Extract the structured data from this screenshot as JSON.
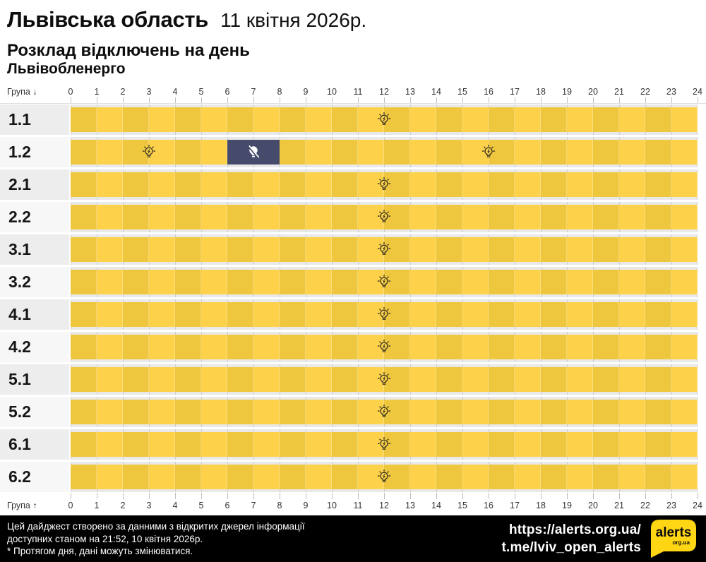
{
  "header": {
    "title": "Львівська область",
    "date": "11 квітня 2026р.",
    "subtitle": "Розклад відключень на день",
    "provider": "Львівобленерго"
  },
  "chart_data": {
    "type": "heatmap",
    "title": "Розклад відключень на день — Львівобленерго, 11 квітня 2026р.",
    "x_axis": {
      "label_top": "Група ↓",
      "label_bottom": "Група ↑",
      "unit": "година доби",
      "min": 0,
      "max": 24,
      "ticks": [
        0,
        1,
        2,
        3,
        4,
        5,
        6,
        7,
        8,
        9,
        10,
        11,
        12,
        13,
        14,
        15,
        16,
        17,
        18,
        19,
        20,
        21,
        22,
        23,
        24
      ]
    },
    "rows": [
      {
        "label": "1.1",
        "segments": [
          {
            "start": 0,
            "end": 24,
            "state": "power_on"
          }
        ]
      },
      {
        "label": "1.2",
        "segments": [
          {
            "start": 0,
            "end": 6,
            "state": "power_on"
          },
          {
            "start": 6,
            "end": 8,
            "state": "power_off"
          },
          {
            "start": 8,
            "end": 24,
            "state": "power_on"
          }
        ]
      },
      {
        "label": "2.1",
        "segments": [
          {
            "start": 0,
            "end": 24,
            "state": "power_on"
          }
        ]
      },
      {
        "label": "2.2",
        "segments": [
          {
            "start": 0,
            "end": 24,
            "state": "power_on"
          }
        ]
      },
      {
        "label": "3.1",
        "segments": [
          {
            "start": 0,
            "end": 24,
            "state": "power_on"
          }
        ]
      },
      {
        "label": "3.2",
        "segments": [
          {
            "start": 0,
            "end": 24,
            "state": "power_on"
          }
        ]
      },
      {
        "label": "4.1",
        "segments": [
          {
            "start": 0,
            "end": 24,
            "state": "power_on"
          }
        ]
      },
      {
        "label": "4.2",
        "segments": [
          {
            "start": 0,
            "end": 24,
            "state": "power_on"
          }
        ]
      },
      {
        "label": "5.1",
        "segments": [
          {
            "start": 0,
            "end": 24,
            "state": "power_on"
          }
        ]
      },
      {
        "label": "5.2",
        "segments": [
          {
            "start": 0,
            "end": 24,
            "state": "power_on"
          }
        ]
      },
      {
        "label": "6.1",
        "segments": [
          {
            "start": 0,
            "end": 24,
            "state": "power_on"
          }
        ]
      },
      {
        "label": "6.2",
        "segments": [
          {
            "start": 0,
            "end": 24,
            "state": "power_on"
          }
        ]
      }
    ],
    "colors": {
      "power_on_dim": "#efc73e",
      "power_on_bright": "#fdd14a",
      "power_off": "#464b6c",
      "track": "#e9e9e9",
      "gridline": "#cccccc",
      "label_bg_odd": "#ededed",
      "label_bg_even": "#f7f7f7",
      "bulb_stroke": "#37311f",
      "logo_yellow": "#ffd613"
    },
    "legend": {
      "power_on": "світло є (жовтий, іконка лампочки)",
      "power_off": "відключення (темно-синій, перекреслена лампочка)"
    }
  },
  "footer": {
    "line1": "Цей дайджест створено за данними з відкритих джерел інформації",
    "line2": "доступних станом на 21:52, 10 квітня 2026р.",
    "line3": "* Протягом дня, дані можуть змінюватися.",
    "link1": "https://alerts.org.ua/",
    "link2": "t.me/lviv_open_alerts",
    "logo_text": "alerts",
    "logo_sub": "org.ua"
  }
}
